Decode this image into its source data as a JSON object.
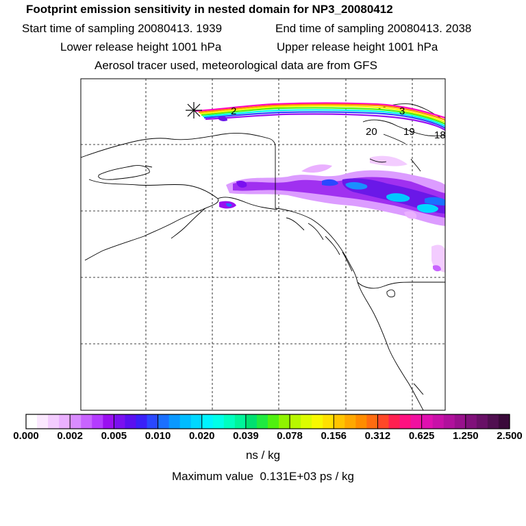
{
  "header": {
    "title": "Footprint emission sensitivity in nested domain for NP3_20080412",
    "start_time": "Start time of sampling 20080413.  1939",
    "end_time": "End time of sampling 20080413.  2038",
    "lower_release": "Lower release height 1001 hPa",
    "upper_release": "Upper release height 1001 hPa",
    "tracer_info": "Aerosol tracer used, meteorological data are from GFS"
  },
  "map": {
    "trajectory_labels": [
      "2",
      "3",
      "20",
      "19",
      "18"
    ],
    "release_marker": "asterisk",
    "coastline_color": "#000000",
    "grid_style": "dashed"
  },
  "colorbar": {
    "tick_labels": [
      "0.000",
      "0.002",
      "0.005",
      "0.010",
      "0.020",
      "0.039",
      "0.078",
      "0.156",
      "0.312",
      "0.625",
      "1.250",
      "2.500"
    ],
    "colors": [
      "#ffffff",
      "#fbe8ff",
      "#f3ccff",
      "#eab0ff",
      "#d98cff",
      "#c864ff",
      "#b43cff",
      "#9a10f0",
      "#7a10f0",
      "#5a10f0",
      "#3a20f8",
      "#2a48ff",
      "#1a70ff",
      "#0a98ff",
      "#00bcff",
      "#00d8ff",
      "#00f4ff",
      "#00ffe8",
      "#00ffc0",
      "#00f49a",
      "#00e070",
      "#20ea40",
      "#50f010",
      "#90f400",
      "#b8f800",
      "#dcfc00",
      "#f8f800",
      "#ffe000",
      "#ffc400",
      "#ffa800",
      "#ff8c00",
      "#ff6c10",
      "#ff4828",
      "#ff2050",
      "#ff1080",
      "#f010a0",
      "#e010b0",
      "#c810a8",
      "#b0109c",
      "#98108c",
      "#80107a",
      "#681066",
      "#500f50",
      "#3a0a3a"
    ],
    "unit": "ns / kg",
    "maximum_value": "Maximum value  0.131E+03 ps / kg"
  }
}
